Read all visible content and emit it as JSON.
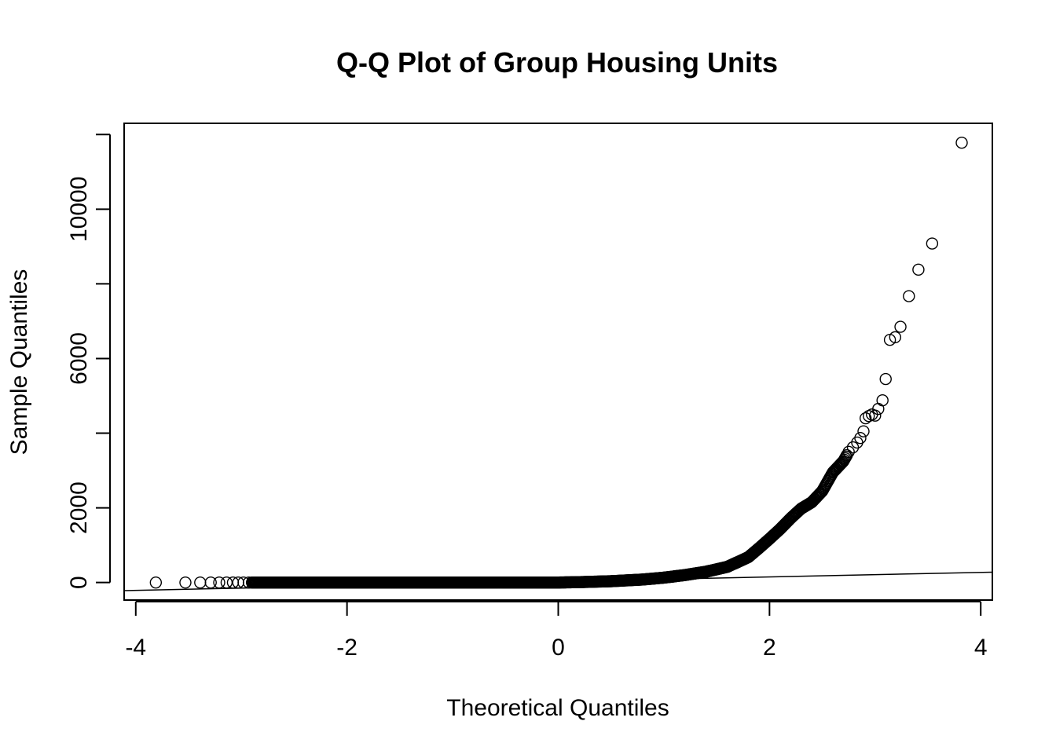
{
  "chart_data": {
    "type": "scatter",
    "title": "Q-Q Plot of Group Housing Units",
    "xlabel": "Theoretical Quantiles",
    "ylabel": "Sample Quantiles",
    "xlim": [
      -4.11,
      4.11
    ],
    "ylim": [
      -470,
      12300
    ],
    "x_ticks": [
      -4,
      -2,
      0,
      2,
      4
    ],
    "x_tick_labels": [
      "-4",
      "-2",
      "0",
      "2",
      "4"
    ],
    "y_ticks": [
      0,
      2000,
      4000,
      6000,
      8000,
      10000,
      12000
    ],
    "y_tick_labels": [
      "0",
      "2000",
      "",
      "6000",
      "",
      "10000",
      ""
    ],
    "grid": false,
    "reference_line": {
      "intercept": 30,
      "slope": 60
    },
    "outer_points": [
      {
        "x": -3.81,
        "y": 0
      },
      {
        "x": -3.53,
        "y": 0
      },
      {
        "x": -3.39,
        "y": 0
      },
      {
        "x": -3.29,
        "y": 0
      },
      {
        "x": -3.21,
        "y": 0
      },
      {
        "x": -3.14,
        "y": 0
      },
      {
        "x": -3.08,
        "y": 0
      },
      {
        "x": -3.03,
        "y": 0
      },
      {
        "x": -2.98,
        "y": 0
      },
      {
        "x": -2.93,
        "y": 0
      },
      {
        "x": 2.75,
        "y": 3500
      },
      {
        "x": 2.79,
        "y": 3620
      },
      {
        "x": 2.83,
        "y": 3750
      },
      {
        "x": 2.86,
        "y": 3870
      },
      {
        "x": 2.89,
        "y": 4050
      },
      {
        "x": 2.91,
        "y": 4400
      },
      {
        "x": 2.94,
        "y": 4460
      },
      {
        "x": 2.97,
        "y": 4500
      },
      {
        "x": 3.0,
        "y": 4470
      },
      {
        "x": 3.03,
        "y": 4650
      },
      {
        "x": 3.07,
        "y": 4880
      },
      {
        "x": 3.1,
        "y": 5450
      },
      {
        "x": 3.14,
        "y": 6500
      },
      {
        "x": 3.19,
        "y": 6570
      },
      {
        "x": 3.24,
        "y": 6850
      },
      {
        "x": 3.32,
        "y": 7670
      },
      {
        "x": 3.41,
        "y": 8380
      },
      {
        "x": 3.54,
        "y": 9080
      },
      {
        "x": 3.82,
        "y": 11780
      }
    ],
    "bulk_curve": [
      {
        "x": -2.9,
        "y": 0
      },
      {
        "x": 0.0,
        "y": 0
      },
      {
        "x": 0.2,
        "y": 10
      },
      {
        "x": 0.5,
        "y": 35
      },
      {
        "x": 0.8,
        "y": 80
      },
      {
        "x": 1.0,
        "y": 130
      },
      {
        "x": 1.2,
        "y": 200
      },
      {
        "x": 1.4,
        "y": 290
      },
      {
        "x": 1.6,
        "y": 420
      },
      {
        "x": 1.8,
        "y": 680
      },
      {
        "x": 1.9,
        "y": 920
      },
      {
        "x": 2.0,
        "y": 1170
      },
      {
        "x": 2.1,
        "y": 1430
      },
      {
        "x": 2.2,
        "y": 1720
      },
      {
        "x": 2.3,
        "y": 1980
      },
      {
        "x": 2.4,
        "y": 2150
      },
      {
        "x": 2.5,
        "y": 2450
      },
      {
        "x": 2.6,
        "y": 2950
      },
      {
        "x": 2.7,
        "y": 3250
      },
      {
        "x": 2.74,
        "y": 3450
      }
    ]
  }
}
